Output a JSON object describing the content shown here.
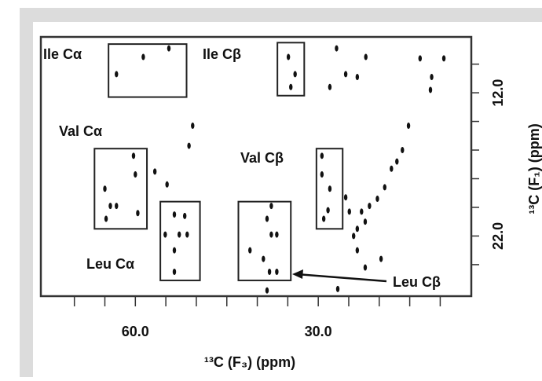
{
  "chart_data": {
    "type": "scatter",
    "xlabel": "¹³C (F₃) (ppm)",
    "ylabel": "¹³C (F₁) (ppm)",
    "xlim": [
      75.5,
      4.9
    ],
    "ylim": [
      8.1,
      26.2
    ],
    "xticks": [
      {
        "value": 60,
        "label": "60.0"
      },
      {
        "value": 30,
        "label": "30.0"
      }
    ],
    "xminorticks": [
      70,
      65,
      55,
      50,
      45,
      40,
      35,
      25,
      20,
      15,
      10
    ],
    "yticks": [
      {
        "value": 12,
        "label": "12.0"
      },
      {
        "value": 22,
        "label": "22.0"
      }
    ],
    "yminorticks": [
      10,
      14,
      16,
      18,
      20,
      24
    ],
    "color": "#111111",
    "x": [
      58.7,
      54.5,
      63.1,
      34.9,
      33.8,
      34.5,
      27.0,
      22.2,
      25.5,
      23.6,
      28.1,
      13.3,
      11.4,
      11.6,
      9.4,
      60.3,
      60.0,
      65.0,
      64.1,
      63.1,
      64.8,
      59.6,
      56.8,
      54.8,
      50.6,
      51.2,
      53.6,
      51.9,
      55.1,
      52.8,
      51.5,
      53.6,
      53.6,
      41.2,
      37.7,
      37.7,
      36.8,
      39.0,
      38.0,
      36.8,
      38.4,
      29.4,
      29.4,
      28.1,
      28.4,
      29.1,
      15.2,
      16.2,
      17.1,
      18.0,
      19.1,
      20.3,
      21.6,
      22.9,
      23.6,
      22.3,
      24.2,
      23.6,
      22.3,
      19.7,
      24.9,
      25.5,
      38.4,
      26.8
    ],
    "y": [
      9.5,
      8.9,
      10.7,
      9.5,
      10.7,
      11.6,
      8.9,
      9.5,
      10.7,
      10.9,
      11.6,
      9.6,
      10.9,
      11.8,
      9.6,
      16.4,
      17.7,
      18.7,
      19.9,
      19.9,
      20.8,
      20.4,
      17.5,
      18.4,
      14.3,
      15.7,
      20.5,
      20.6,
      21.9,
      21.9,
      21.9,
      23.0,
      24.5,
      23.0,
      19.9,
      21.9,
      21.9,
      23.6,
      24.5,
      24.5,
      20.8,
      16.4,
      17.7,
      18.7,
      20.2,
      20.8,
      14.3,
      16.0,
      16.8,
      17.3,
      18.6,
      19.4,
      19.9,
      20.3,
      21.5,
      21.0,
      22.0,
      23.0,
      24.2,
      23.6,
      20.3,
      19.3,
      25.8,
      25.7
    ],
    "regions": [
      {
        "label": "Ile Cα",
        "xrange": [
          64.4,
          51.6
        ],
        "yrange": [
          8.6,
          12.3
        ]
      },
      {
        "label": "Ile Cβ",
        "xrange": [
          36.7,
          32.3
        ],
        "yrange": [
          8.5,
          12.2
        ]
      },
      {
        "label": "Val Cα",
        "xrange": [
          66.7,
          58.1
        ],
        "yrange": [
          15.9,
          21.5
        ]
      },
      {
        "label": "Leu Cα",
        "xrange": [
          55.9,
          49.4
        ],
        "yrange": [
          19.6,
          25.1
        ]
      },
      {
        "label": "Leu Cβ",
        "xrange": [
          43.1,
          34.5
        ],
        "yrange": [
          19.6,
          25.1
        ]
      },
      {
        "label": "Val Cβ",
        "xrange": [
          30.3,
          26.0
        ],
        "yrange": [
          15.9,
          21.5
        ]
      }
    ]
  }
}
